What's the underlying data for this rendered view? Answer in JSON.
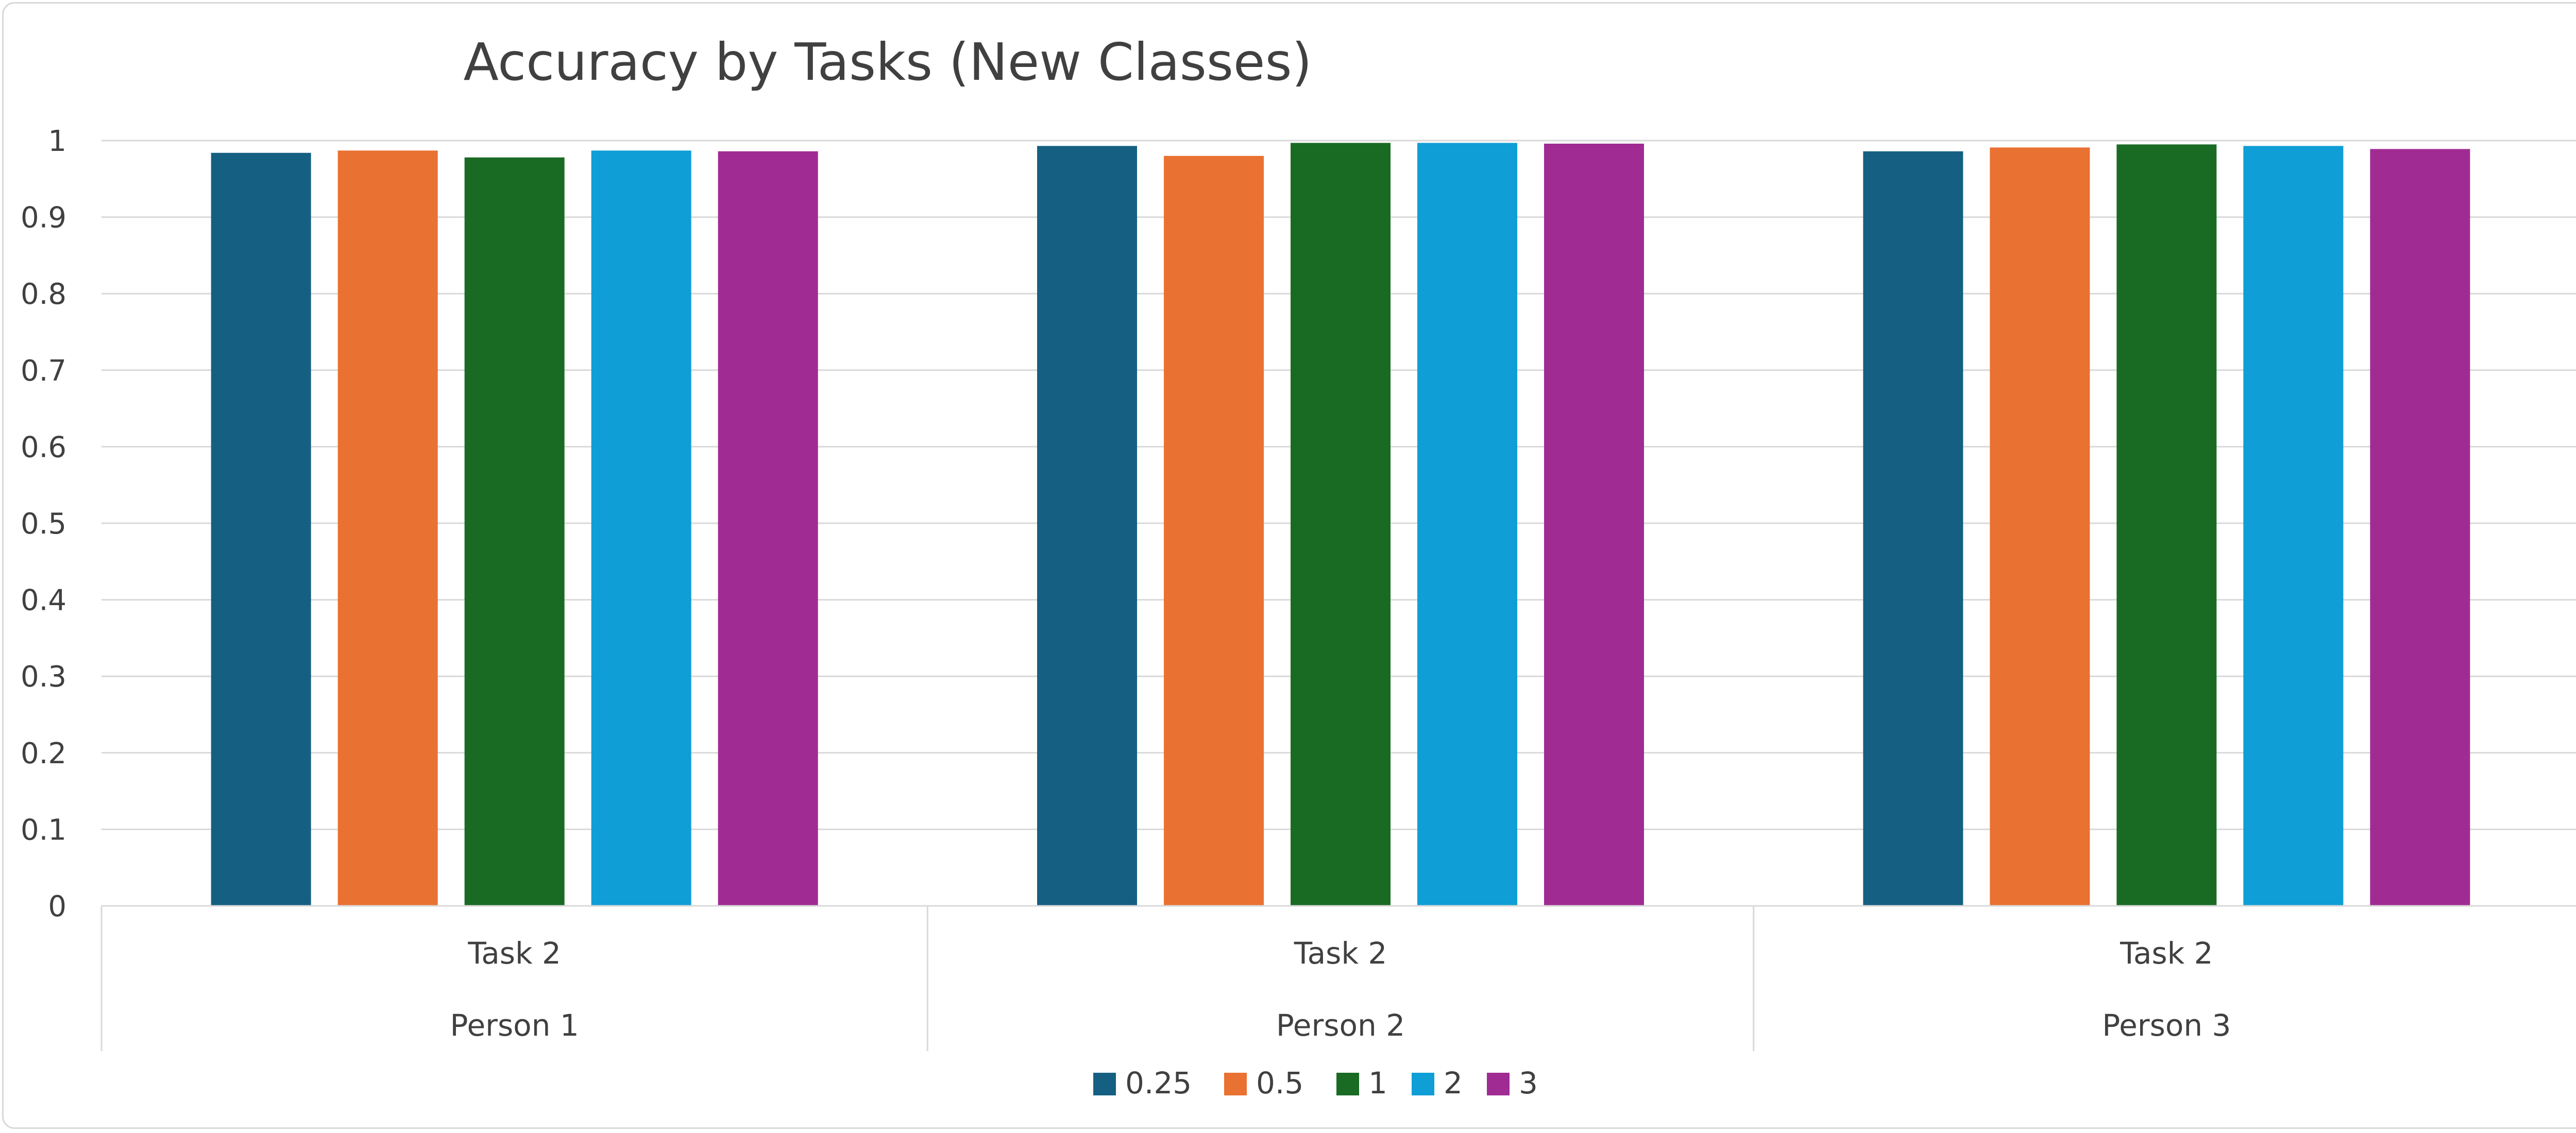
{
  "chart_data": {
    "type": "bar",
    "title": "Accuracy by Tasks (New Classes)",
    "xlabel": "",
    "ylabel": "",
    "ylim": [
      0,
      1
    ],
    "yticks": [
      "0",
      "0.1",
      "0.2",
      "0.3",
      "0.4",
      "0.5",
      "0.6",
      "0.7",
      "0.8",
      "0.9",
      "1"
    ],
    "categories": [
      {
        "task": "Task 2",
        "person": "Person 1"
      },
      {
        "task": "Task 2",
        "person": "Person 2"
      },
      {
        "task": "Task 2",
        "person": "Person 3"
      }
    ],
    "series": [
      {
        "name": "0.25",
        "color": "#156082",
        "values": [
          0.984,
          0.993,
          0.986
        ]
      },
      {
        "name": "0.5",
        "color": "#e97132",
        "values": [
          0.987,
          0.98,
          0.991
        ]
      },
      {
        "name": "1",
        "color": "#196b24",
        "values": [
          0.978,
          0.997,
          0.995
        ]
      },
      {
        "name": "2",
        "color": "#0f9ed5",
        "values": [
          0.987,
          0.997,
          0.993
        ]
      },
      {
        "name": "3",
        "color": "#a02b93",
        "values": [
          0.986,
          0.996,
          0.989
        ]
      }
    ],
    "grid": true,
    "legend_position": "bottom"
  }
}
